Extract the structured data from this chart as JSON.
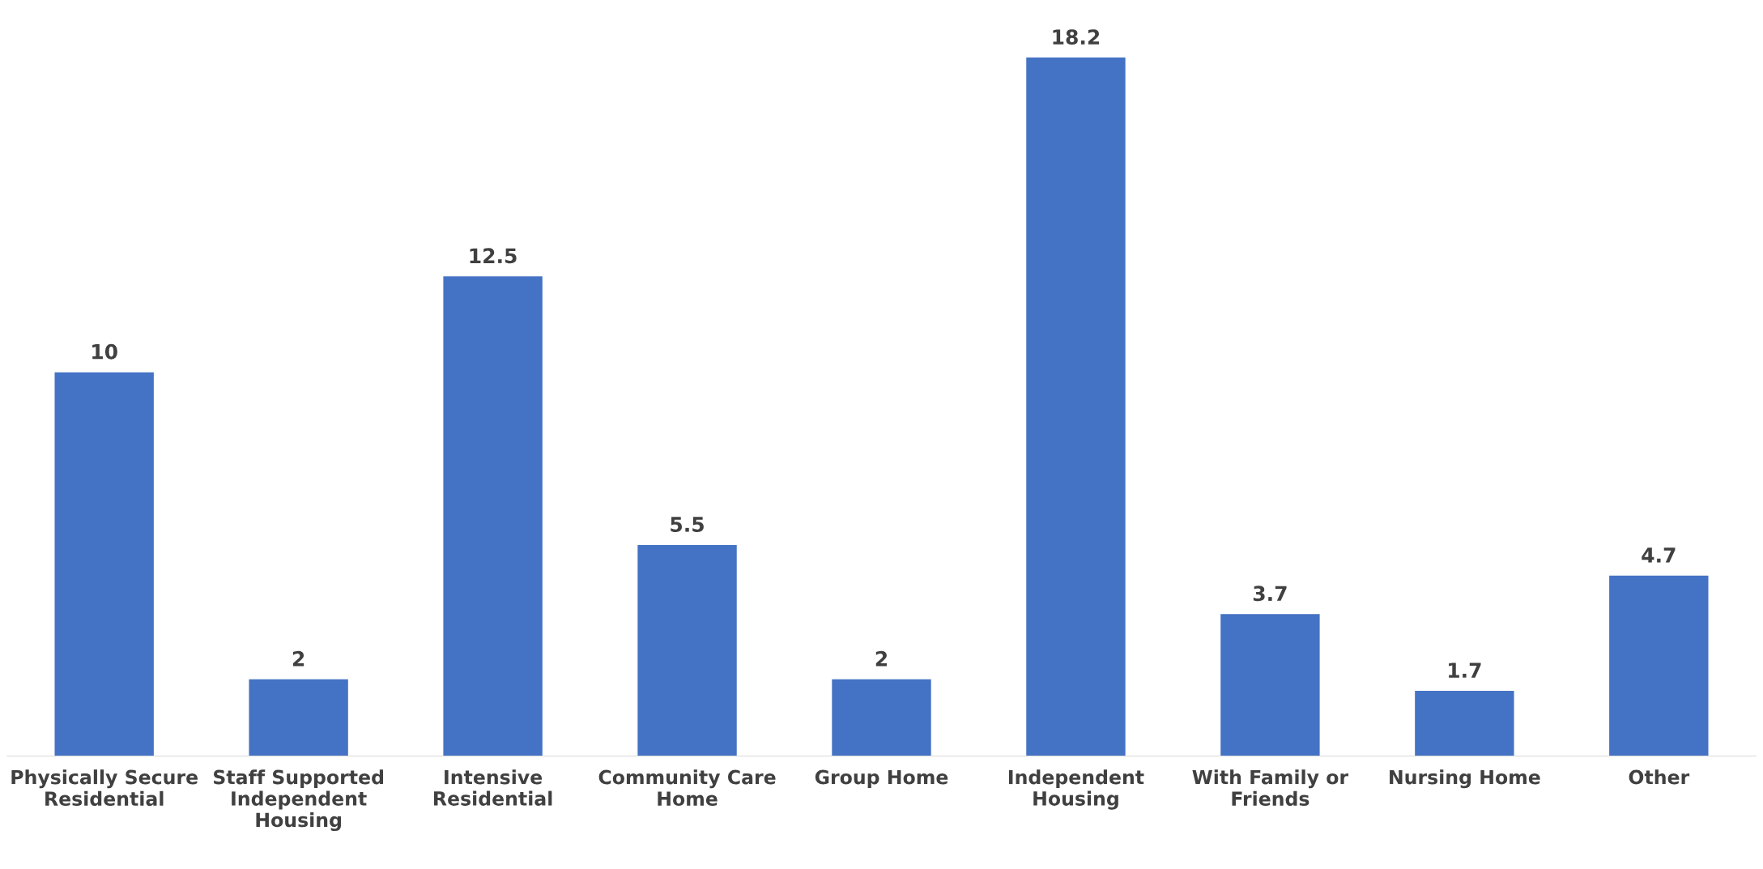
{
  "chart_data": {
    "type": "bar",
    "categories": [
      "Physically Secure Residential",
      "Staff Supported Independent Housing",
      "Intensive Residential",
      "Community Care Home",
      "Group Home",
      "Independent Housing",
      "With Family or Friends",
      "Nursing Home",
      "Other"
    ],
    "values": [
      10,
      2,
      12.5,
      5.5,
      2,
      18.2,
      3.7,
      1.7,
      4.7
    ],
    "color": "#4472c4",
    "data_labels": true,
    "grid": false,
    "legend": false
  }
}
